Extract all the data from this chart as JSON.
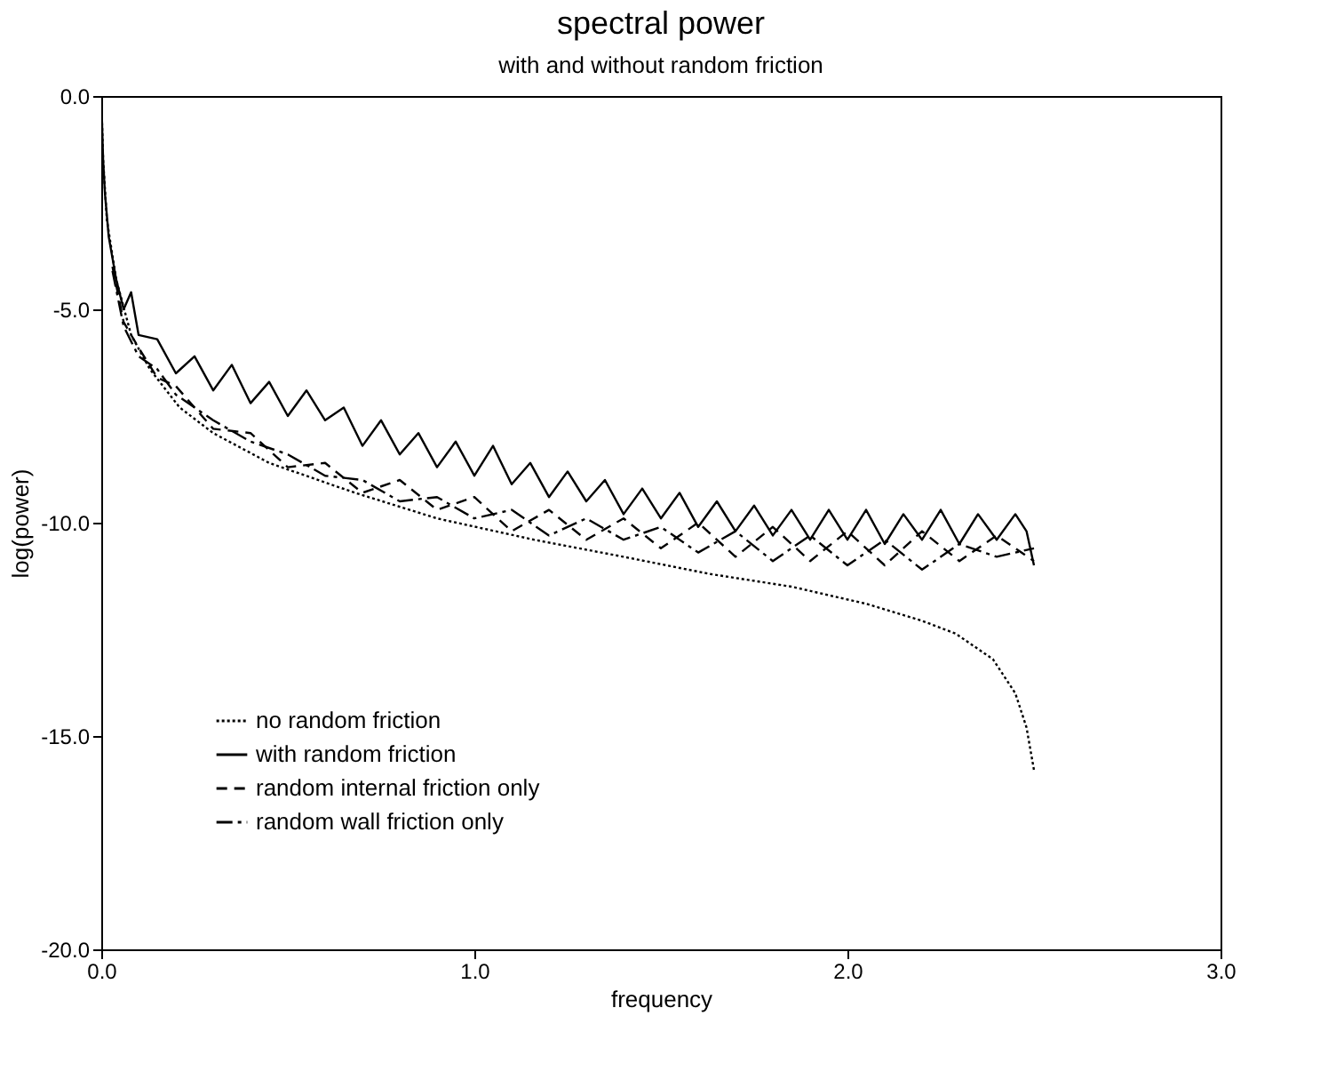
{
  "chart_data": {
    "type": "line",
    "title": "spectral power",
    "subtitle": "with and without random friction",
    "xlabel": "frequency",
    "ylabel": "log(power)",
    "xlim": [
      0,
      3
    ],
    "xticks": [
      {
        "value": 0,
        "label": "0.0"
      },
      {
        "value": 1,
        "label": "1.0"
      },
      {
        "value": 2,
        "label": "2.0"
      },
      {
        "value": 3,
        "label": "3.0"
      }
    ],
    "ylim": [
      -20,
      0
    ],
    "yticks": [
      {
        "value": -20,
        "label": "-20.0"
      },
      {
        "value": -15,
        "label": "-15.0"
      },
      {
        "value": -10,
        "label": "-10.0"
      },
      {
        "value": -5,
        "label": "-5.0"
      },
      {
        "value": 0,
        "label": "0.0"
      }
    ],
    "grid": false,
    "legend": "bottom left",
    "marker": "none",
    "series": [
      {
        "name": "no random friction",
        "color": "#000000",
        "line_style": "dotted",
        "x": [
          0,
          0.005,
          0.015,
          0.04,
          0.08,
          0.13,
          0.21,
          0.3,
          0.45,
          0.68,
          0.9,
          1.16,
          1.4,
          1.63,
          1.85,
          2.05,
          2.2,
          2.29,
          2.39,
          2.45,
          2.48,
          2.5
        ],
        "values": [
          0,
          -1.5,
          -2.9,
          -4.3,
          -5.6,
          -6.4,
          -7.3,
          -7.9,
          -8.6,
          -9.3,
          -9.9,
          -10.4,
          -10.8,
          -11.2,
          -11.5,
          -11.9,
          -12.3,
          -12.6,
          -13.2,
          -14.0,
          -14.8,
          -15.8
        ]
      },
      {
        "name": "with random friction",
        "color": "#000000",
        "line_style": "solid",
        "x": [
          0,
          0.005,
          0.01,
          0.02,
          0.04,
          0.06,
          0.08,
          0.1,
          0.15,
          0.2,
          0.25,
          0.3,
          0.35,
          0.4,
          0.45,
          0.5,
          0.55,
          0.6,
          0.65,
          0.7,
          0.75,
          0.8,
          0.85,
          0.9,
          0.95,
          1.0,
          1.05,
          1.1,
          1.15,
          1.2,
          1.25,
          1.3,
          1.35,
          1.4,
          1.45,
          1.5,
          1.55,
          1.6,
          1.65,
          1.7,
          1.75,
          1.8,
          1.85,
          1.9,
          1.95,
          2.0,
          2.05,
          2.1,
          2.15,
          2.2,
          2.25,
          2.3,
          2.35,
          2.4,
          2.45,
          2.48,
          2.5
        ],
        "values": [
          0,
          -1.5,
          -2.3,
          -3.3,
          -4.3,
          -5.0,
          -4.6,
          -5.6,
          -5.7,
          -6.5,
          -6.1,
          -6.9,
          -6.3,
          -7.2,
          -6.7,
          -7.5,
          -6.9,
          -7.6,
          -7.3,
          -8.2,
          -7.6,
          -8.4,
          -7.9,
          -8.7,
          -8.1,
          -8.9,
          -8.2,
          -9.1,
          -8.6,
          -9.4,
          -8.8,
          -9.5,
          -9.0,
          -9.8,
          -9.2,
          -9.9,
          -9.3,
          -10.1,
          -9.5,
          -10.2,
          -9.6,
          -10.3,
          -9.7,
          -10.4,
          -9.7,
          -10.4,
          -9.7,
          -10.5,
          -9.8,
          -10.4,
          -9.7,
          -10.5,
          -9.8,
          -10.4,
          -9.8,
          -10.2,
          -11.0
        ]
      },
      {
        "name": "random internal friction only",
        "color": "#000000",
        "line_style": "dashed",
        "x": [
          0.03,
          0.06,
          0.1,
          0.15,
          0.2,
          0.3,
          0.4,
          0.5,
          0.6,
          0.7,
          0.8,
          0.9,
          1.0,
          1.1,
          1.2,
          1.3,
          1.4,
          1.5,
          1.6,
          1.7,
          1.8,
          1.9,
          2.0,
          2.1,
          2.2,
          2.3,
          2.4,
          2.5
        ],
        "values": [
          -4.0,
          -5.3,
          -5.9,
          -6.6,
          -6.8,
          -7.8,
          -7.9,
          -8.7,
          -8.6,
          -9.3,
          -9.0,
          -9.7,
          -9.4,
          -10.2,
          -9.7,
          -10.4,
          -9.9,
          -10.6,
          -10.0,
          -10.8,
          -10.1,
          -10.9,
          -10.2,
          -11.0,
          -10.2,
          -10.9,
          -10.3,
          -10.9
        ]
      },
      {
        "name": "random wall friction only",
        "color": "#000000",
        "line_style": "dashdot",
        "x": [
          0.03,
          0.06,
          0.1,
          0.15,
          0.2,
          0.3,
          0.4,
          0.5,
          0.6,
          0.7,
          0.8,
          0.9,
          1.0,
          1.1,
          1.2,
          1.3,
          1.4,
          1.5,
          1.6,
          1.7,
          1.8,
          1.9,
          2.0,
          2.1,
          2.2,
          2.3,
          2.4,
          2.5
        ],
        "values": [
          -4.1,
          -5.4,
          -6.1,
          -6.4,
          -7.0,
          -7.6,
          -8.1,
          -8.4,
          -8.9,
          -9.0,
          -9.5,
          -9.4,
          -9.9,
          -9.7,
          -10.3,
          -9.9,
          -10.4,
          -10.1,
          -10.7,
          -10.2,
          -10.9,
          -10.3,
          -11.0,
          -10.4,
          -11.1,
          -10.5,
          -10.8,
          -10.6
        ]
      }
    ]
  }
}
